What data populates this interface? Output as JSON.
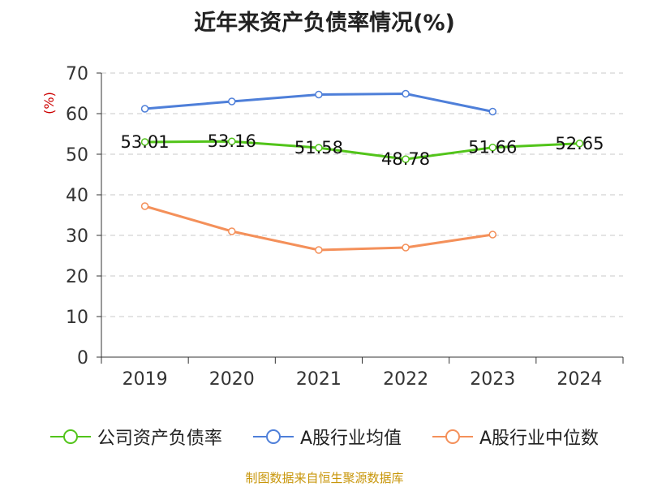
{
  "chart_data": {
    "type": "line",
    "title": "近年来资产负债率情况(%)",
    "ylabel": "(%)",
    "categories": [
      "2019",
      "2020",
      "2021",
      "2022",
      "2023",
      "2024"
    ],
    "ylim": [
      0,
      70
    ],
    "yticks": [
      0,
      10,
      20,
      30,
      40,
      50,
      60,
      70
    ],
    "grid": true,
    "legend_position": "bottom",
    "series": [
      {
        "name": "公司资产负债率",
        "color": "#52c41a",
        "values": [
          53.01,
          53.16,
          51.58,
          48.78,
          51.66,
          52.65
        ],
        "data_labels": [
          "53.01",
          "53.16",
          "51.58",
          "48.78",
          "51.66",
          "52.65"
        ]
      },
      {
        "name": "A股行业均值",
        "color": "#4e7fd9",
        "values": [
          61.2,
          63.0,
          64.7,
          64.9,
          60.5,
          null
        ]
      },
      {
        "name": "A股行业中位数",
        "color": "#f4905a",
        "values": [
          37.2,
          31.0,
          26.4,
          27.0,
          30.2,
          null
        ]
      }
    ]
  },
  "source": "制图数据来自恒生聚源数据库"
}
